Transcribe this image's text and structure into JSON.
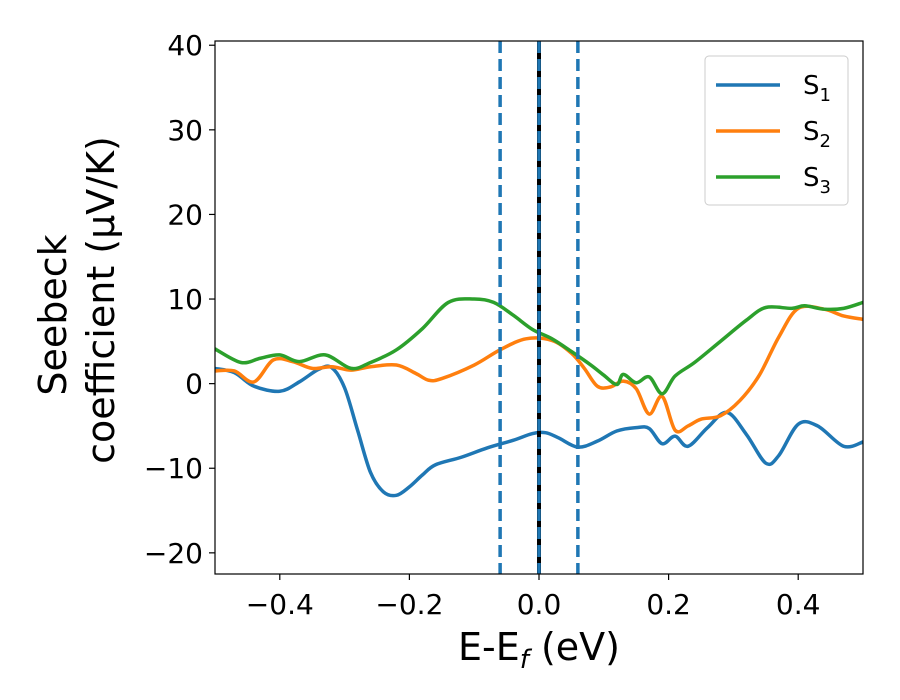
{
  "chart_data": {
    "type": "line",
    "xlabel_main": "E-E",
    "xlabel_sub": "f",
    "xlabel_unit": " (eV)",
    "ylabel_line1": "Seebeck",
    "ylabel_line2": "coefficient  (μV/K)",
    "xlim": [
      -0.5,
      0.5
    ],
    "ylim": [
      -22.5,
      40.5
    ],
    "x_ticks": [
      -0.4,
      -0.2,
      0.0,
      0.2,
      0.4
    ],
    "x_tick_labels": [
      "−0.4",
      "−0.2",
      "0.0",
      "0.2",
      "0.4"
    ],
    "y_ticks": [
      -20,
      -10,
      0,
      10,
      20,
      30,
      40
    ],
    "y_tick_labels": [
      "−20",
      "−10",
      "0",
      "10",
      "20",
      "30",
      "40"
    ],
    "grid": false,
    "legend_position": "top-right",
    "vertical_lines": [
      {
        "x": -0.06,
        "style": "dashed",
        "color": "#1f77b4"
      },
      {
        "x": 0.06,
        "style": "dashed",
        "color": "#1f77b4"
      },
      {
        "x": 0.0,
        "style": "solid",
        "color": "#000000"
      },
      {
        "x": 0.0,
        "style": "dashed",
        "color": "#1f77b4"
      }
    ],
    "series": [
      {
        "name": "S",
        "sub": "1",
        "color": "#1f77b4",
        "points": [
          [
            -0.5,
            1.8
          ],
          [
            -0.47,
            1.3
          ],
          [
            -0.44,
            -0.3
          ],
          [
            -0.4,
            -0.9
          ],
          [
            -0.37,
            0.2
          ],
          [
            -0.34,
            1.7
          ],
          [
            -0.32,
            1.9
          ],
          [
            -0.3,
            -0.5
          ],
          [
            -0.28,
            -5.5
          ],
          [
            -0.26,
            -10.5
          ],
          [
            -0.24,
            -12.8
          ],
          [
            -0.22,
            -13.2
          ],
          [
            -0.2,
            -12.2
          ],
          [
            -0.18,
            -10.8
          ],
          [
            -0.16,
            -9.6
          ],
          [
            -0.12,
            -8.7
          ],
          [
            -0.08,
            -7.6
          ],
          [
            -0.04,
            -6.7
          ],
          [
            -0.01,
            -5.9
          ],
          [
            0.01,
            -5.8
          ],
          [
            0.03,
            -6.4
          ],
          [
            0.06,
            -7.5
          ],
          [
            0.09,
            -6.8
          ],
          [
            0.12,
            -5.6
          ],
          [
            0.15,
            -5.2
          ],
          [
            0.17,
            -5.3
          ],
          [
            0.19,
            -7.1
          ],
          [
            0.21,
            -6.2
          ],
          [
            0.23,
            -7.4
          ],
          [
            0.26,
            -5.2
          ],
          [
            0.29,
            -3.4
          ],
          [
            0.32,
            -6.0
          ],
          [
            0.35,
            -9.4
          ],
          [
            0.37,
            -8.5
          ],
          [
            0.4,
            -4.8
          ],
          [
            0.43,
            -5.0
          ],
          [
            0.47,
            -7.4
          ],
          [
            0.5,
            -6.9
          ]
        ]
      },
      {
        "name": "S",
        "sub": "2",
        "color": "#ff7f0e",
        "points": [
          [
            -0.5,
            1.5
          ],
          [
            -0.47,
            1.5
          ],
          [
            -0.44,
            0.2
          ],
          [
            -0.41,
            2.8
          ],
          [
            -0.38,
            2.6
          ],
          [
            -0.35,
            1.8
          ],
          [
            -0.32,
            2.0
          ],
          [
            -0.29,
            1.6
          ],
          [
            -0.26,
            2.0
          ],
          [
            -0.22,
            2.2
          ],
          [
            -0.19,
            1.2
          ],
          [
            -0.17,
            0.4
          ],
          [
            -0.15,
            0.6
          ],
          [
            -0.1,
            2.2
          ],
          [
            -0.06,
            4.0
          ],
          [
            -0.02,
            5.3
          ],
          [
            0.02,
            5.1
          ],
          [
            0.05,
            3.6
          ],
          [
            0.07,
            1.8
          ],
          [
            0.09,
            -0.3
          ],
          [
            0.11,
            -0.4
          ],
          [
            0.13,
            0.3
          ],
          [
            0.15,
            -0.6
          ],
          [
            0.17,
            -3.6
          ],
          [
            0.19,
            -1.5
          ],
          [
            0.21,
            -5.5
          ],
          [
            0.23,
            -5.0
          ],
          [
            0.25,
            -4.2
          ],
          [
            0.28,
            -3.8
          ],
          [
            0.31,
            -2.0
          ],
          [
            0.34,
            1.0
          ],
          [
            0.37,
            5.5
          ],
          [
            0.4,
            8.9
          ],
          [
            0.44,
            8.8
          ],
          [
            0.47,
            8.0
          ],
          [
            0.5,
            7.6
          ]
        ]
      },
      {
        "name": "S",
        "sub": "3",
        "color": "#2ca02c",
        "points": [
          [
            -0.5,
            4.1
          ],
          [
            -0.46,
            2.5
          ],
          [
            -0.43,
            3.0
          ],
          [
            -0.4,
            3.4
          ],
          [
            -0.37,
            2.6
          ],
          [
            -0.33,
            3.4
          ],
          [
            -0.29,
            1.8
          ],
          [
            -0.26,
            2.5
          ],
          [
            -0.22,
            4.0
          ],
          [
            -0.18,
            6.5
          ],
          [
            -0.14,
            9.6
          ],
          [
            -0.1,
            10.0
          ],
          [
            -0.07,
            9.6
          ],
          [
            -0.04,
            8.1
          ],
          [
            -0.01,
            6.4
          ],
          [
            0.02,
            5.3
          ],
          [
            0.05,
            3.8
          ],
          [
            0.08,
            2.2
          ],
          [
            0.1,
            1.0
          ],
          [
            0.12,
            -0.1
          ],
          [
            0.13,
            1.1
          ],
          [
            0.15,
            0.1
          ],
          [
            0.17,
            0.8
          ],
          [
            0.19,
            -1.2
          ],
          [
            0.21,
            0.9
          ],
          [
            0.24,
            2.5
          ],
          [
            0.28,
            5.0
          ],
          [
            0.32,
            7.5
          ],
          [
            0.35,
            9.0
          ],
          [
            0.39,
            8.9
          ],
          [
            0.41,
            9.2
          ],
          [
            0.44,
            8.8
          ],
          [
            0.47,
            8.9
          ],
          [
            0.5,
            9.6
          ]
        ]
      }
    ]
  }
}
